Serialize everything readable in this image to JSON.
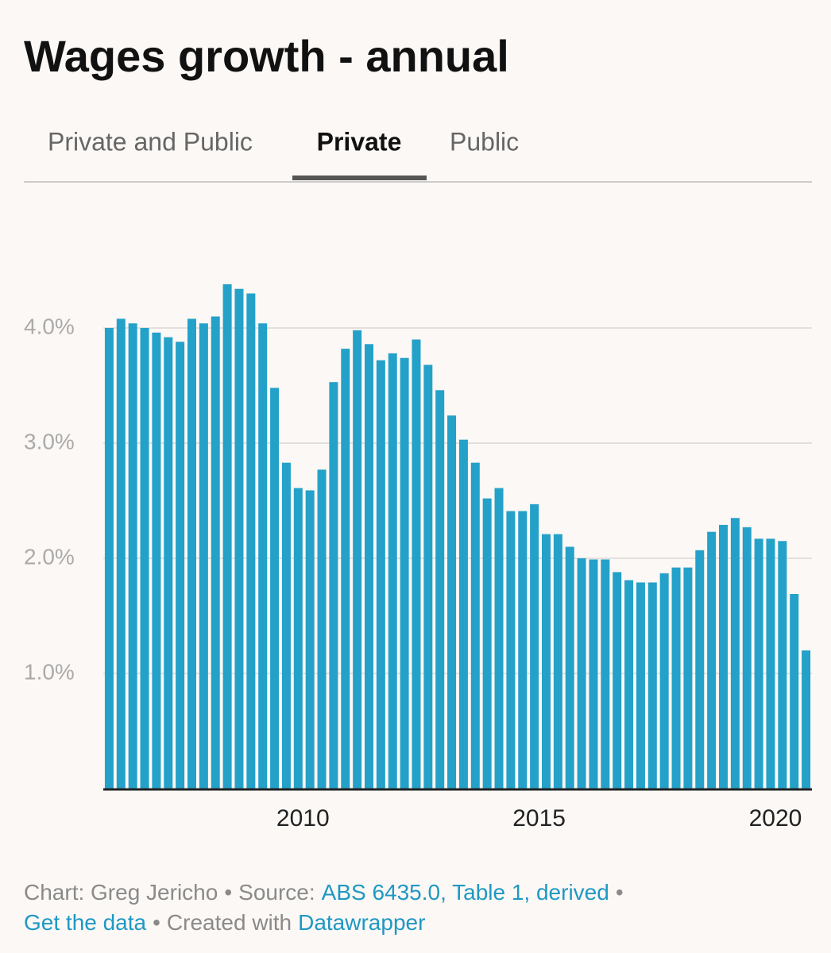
{
  "chart_data": {
    "type": "bar",
    "title": "Wages growth - annual",
    "tabs": [
      "Private and Public",
      "Private",
      "Public"
    ],
    "active_tab": 1,
    "categories": [
      null,
      null,
      null,
      null,
      null,
      null,
      null,
      null,
      null,
      null,
      null,
      null,
      null,
      null,
      null,
      null,
      "2010",
      null,
      null,
      null,
      null,
      null,
      null,
      null,
      null,
      null,
      null,
      null,
      null,
      null,
      null,
      null,
      null,
      null,
      null,
      null,
      "2015",
      null,
      null,
      null,
      null,
      null,
      null,
      null,
      null,
      null,
      null,
      null,
      null,
      null,
      null,
      null,
      null,
      null,
      null,
      null,
      "2020",
      null,
      null,
      null
    ],
    "values": [
      4.0,
      4.08,
      4.04,
      4.0,
      3.96,
      3.92,
      3.88,
      4.08,
      4.04,
      4.1,
      4.38,
      4.34,
      4.3,
      4.04,
      3.48,
      2.83,
      2.61,
      2.59,
      2.77,
      3.53,
      3.82,
      3.98,
      3.86,
      3.72,
      3.78,
      3.74,
      3.9,
      3.68,
      3.46,
      3.24,
      3.03,
      2.83,
      2.52,
      2.61,
      2.41,
      2.41,
      2.47,
      2.21,
      2.21,
      2.1,
      2.0,
      1.99,
      1.99,
      1.88,
      1.81,
      1.79,
      1.79,
      1.87,
      1.92,
      1.92,
      2.07,
      2.23,
      2.29,
      2.35,
      2.27,
      2.17,
      2.17,
      2.15,
      1.69,
      1.2
    ],
    "color": "#24a1c9",
    "ylim": [
      0,
      4.6
    ],
    "yticks": [
      {
        "value": 1,
        "label": "1.0%"
      },
      {
        "value": 2,
        "label": "2.0%"
      },
      {
        "value": 3,
        "label": "3.0%"
      },
      {
        "value": 4,
        "label": "4.0%"
      }
    ],
    "grid": true,
    "footer": [
      [
        {
          "text": "Chart: Greg Jericho",
          "link": false
        },
        {
          "text": "•",
          "link": false
        },
        {
          "text": "Source:",
          "link": false
        },
        {
          "text": "ABS 6435.0, Table 1, derived",
          "link": true
        },
        {
          "text": "•",
          "link": false
        }
      ],
      [
        {
          "text": "Get the data",
          "link": true
        },
        {
          "text": "•",
          "link": false
        },
        {
          "text": "Created with",
          "link": false
        },
        {
          "text": "Datawrapper",
          "link": true
        }
      ]
    ]
  }
}
